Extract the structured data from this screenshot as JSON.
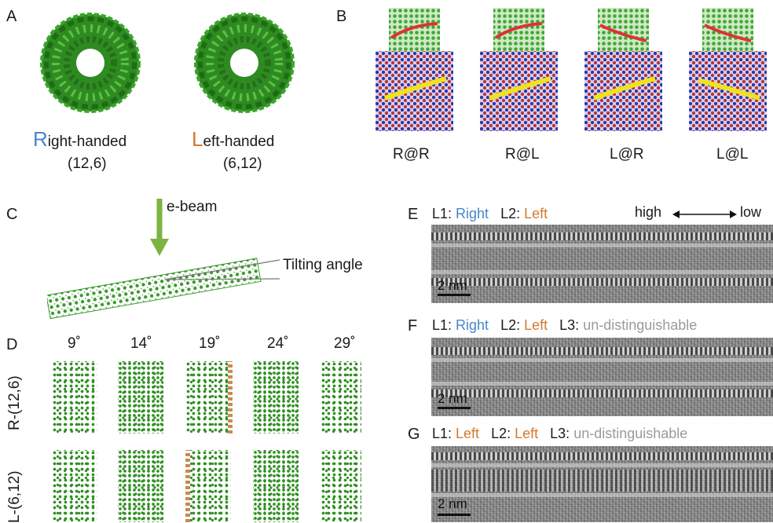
{
  "panel_labels": {
    "a": "A",
    "b": "B",
    "c": "C",
    "d": "D",
    "e": "E",
    "f": "F",
    "g": "G"
  },
  "panel_a": {
    "right_initial": "R",
    "right_rest": "ight-handed",
    "right_index": "(12,6)",
    "left_initial": "L",
    "left_rest": "eft-handed",
    "left_index": "(6,12)"
  },
  "panel_b": {
    "labels": [
      "R@R",
      "R@L",
      "L@R",
      "L@L"
    ]
  },
  "panel_c": {
    "beam_label": "e-beam",
    "angle_label": "Tilting angle"
  },
  "panel_d": {
    "angles": [
      "9˚",
      "14˚",
      "19˚",
      "24˚",
      "29˚"
    ],
    "rows": [
      "R-(12,6)",
      "L-(6,12)"
    ]
  },
  "panel_e": {
    "l1_prefix": "L1: ",
    "l1_value": "Right",
    "l2_prefix": "L2: ",
    "l2_value": "Left",
    "scale_high": "high",
    "scale_low": "low",
    "scalebar": "2 nm"
  },
  "panel_f": {
    "l1_prefix": "L1: ",
    "l1_value": "Right",
    "l2_prefix": "L2: ",
    "l2_value": "Left",
    "l3_prefix": "L3: ",
    "l3_value": "un-distinguishable",
    "scalebar": "2 nm"
  },
  "panel_g": {
    "l1_prefix": "L1: ",
    "l1_value": "Left",
    "l2_prefix": "L2: ",
    "l2_value": "Left",
    "l3_prefix": "L3: ",
    "l3_value": "un-distinguishable",
    "scalebar": "2 nm"
  },
  "colors": {
    "right": "#4a86c8",
    "left": "#d27a2e",
    "undistinguishable": "#9a9a9a",
    "atom": "#2f8f22",
    "arrow": "#7cb342"
  }
}
